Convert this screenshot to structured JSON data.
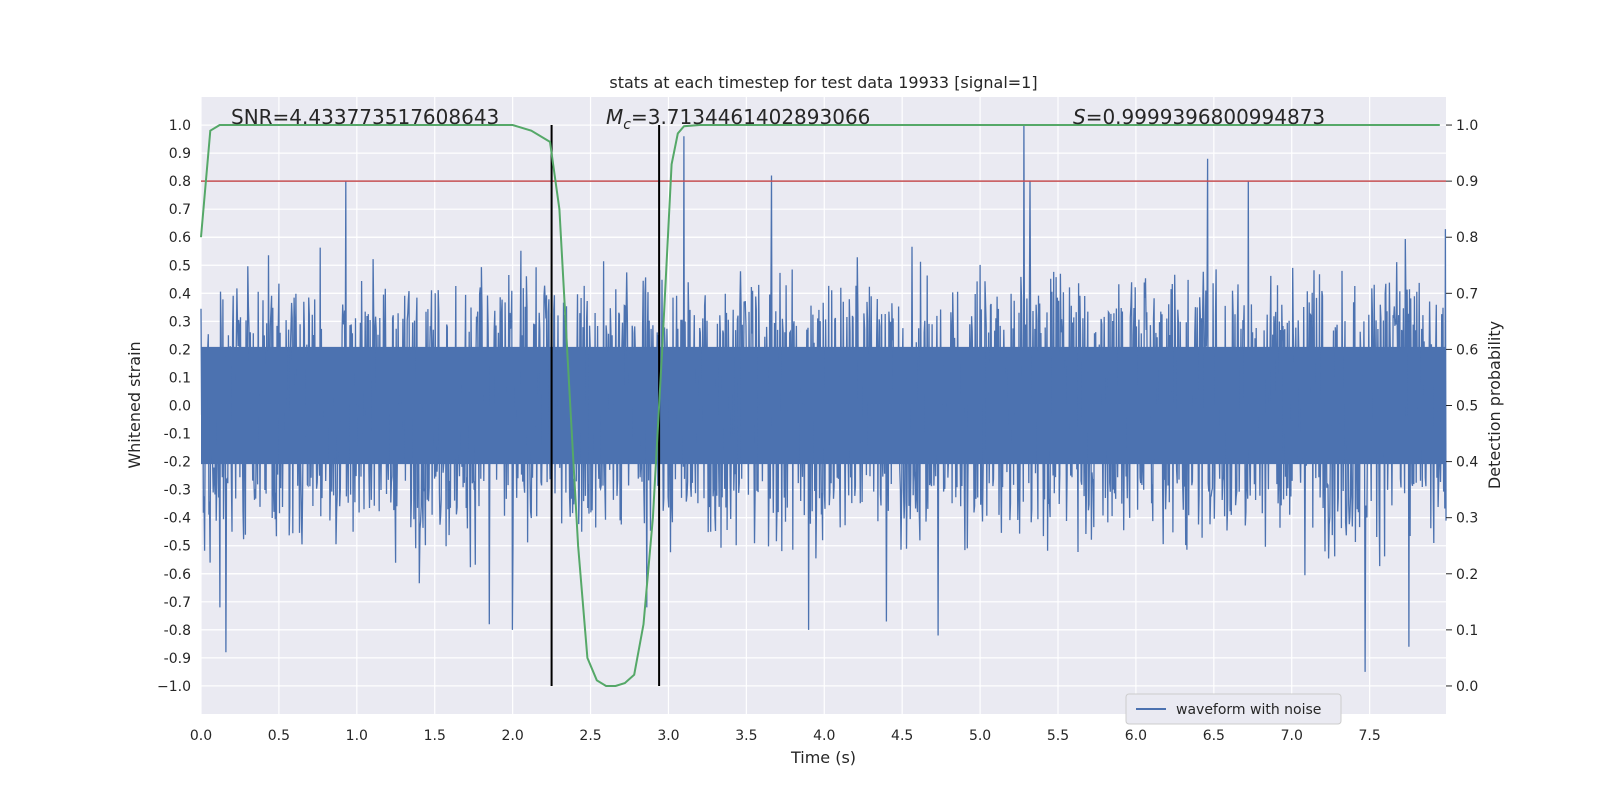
{
  "chart_data": {
    "type": "line",
    "title": "stats at each timestep for test data 19933 [signal=1]",
    "xlabel": "Time (s)",
    "ylabel_left": "Whitened strain",
    "ylabel_right": "Detection probability",
    "xlim": [
      0.0,
      7.99
    ],
    "ylim_left": [
      -1.1,
      1.1
    ],
    "ylim_right": [
      -0.05,
      1.05
    ],
    "x_ticks": [
      "0.0",
      "0.5",
      "1.0",
      "1.5",
      "2.0",
      "2.5",
      "3.0",
      "3.5",
      "4.0",
      "4.5",
      "5.0",
      "5.5",
      "6.0",
      "6.5",
      "7.0",
      "7.5"
    ],
    "y_ticks_left": [
      "1.0",
      "0.9",
      "0.8",
      "0.7",
      "0.6",
      "0.5",
      "0.4",
      "0.3",
      "0.2",
      "0.1",
      "0.0",
      "-0.1",
      "-0.2",
      "-0.3",
      "-0.4",
      "-0.5",
      "-0.6",
      "-0.7",
      "-0.8",
      "-0.9",
      "−1.0"
    ],
    "y_ticks_right": [
      "0.0",
      "0.1",
      "0.2",
      "0.3",
      "0.4",
      "0.5",
      "0.6",
      "0.7",
      "0.8",
      "0.9",
      "1.0"
    ],
    "annotations": {
      "snr": "SNR=4.433773517608643",
      "mc_symbol": "M",
      "mc_sub": "c",
      "mc_value": "=3.7134461402893066",
      "s_symbol": "S",
      "s_value": "=0.9999396800994873"
    },
    "legend": {
      "label": "waveform with noise",
      "location": "lower-right"
    },
    "threshold_line": {
      "y_left": 0.8,
      "color": "#c44e52"
    },
    "vertical_lines": [
      2.25,
      2.94
    ],
    "waveform": {
      "name": "waveform with noise",
      "color": "#4c72b0",
      "n_samples": 2048,
      "envelope_core": 0.38,
      "spikes": [
        {
          "x": 0.06,
          "y": -0.56
        },
        {
          "x": 0.12,
          "y": -0.72
        },
        {
          "x": 0.16,
          "y": -0.88
        },
        {
          "x": 0.93,
          "y": 0.8
        },
        {
          "x": 1.85,
          "y": -0.78
        },
        {
          "x": 2.0,
          "y": -0.8
        },
        {
          "x": 3.1,
          "y": 0.96
        },
        {
          "x": 3.66,
          "y": 0.82
        },
        {
          "x": 3.9,
          "y": -0.8
        },
        {
          "x": 4.4,
          "y": -0.77
        },
        {
          "x": 4.73,
          "y": -0.82
        },
        {
          "x": 5.28,
          "y": 1.0
        },
        {
          "x": 5.32,
          "y": 0.8
        },
        {
          "x": 6.46,
          "y": 0.88
        },
        {
          "x": 6.72,
          "y": 0.8
        },
        {
          "x": 7.47,
          "y": -0.95
        },
        {
          "x": 7.75,
          "y": -0.86
        },
        {
          "x": 2.86,
          "y": -0.72
        }
      ]
    },
    "detection_probability": {
      "name": "detection probability",
      "color": "#55a868",
      "x": [
        0.0,
        0.06,
        0.12,
        0.2,
        1.0,
        2.0,
        2.12,
        2.24,
        2.3,
        2.36,
        2.42,
        2.48,
        2.54,
        2.6,
        2.66,
        2.72,
        2.78,
        2.84,
        2.9,
        2.96,
        3.02,
        3.06,
        3.1,
        3.2,
        4.0,
        7.95
      ],
      "y": [
        0.8,
        0.99,
        1.0,
        1.0,
        1.0,
        1.0,
        0.99,
        0.97,
        0.85,
        0.55,
        0.25,
        0.05,
        0.01,
        0.0,
        0.0,
        0.005,
        0.02,
        0.11,
        0.3,
        0.6,
        0.93,
        0.985,
        0.998,
        1.0,
        1.0,
        1.0
      ]
    }
  }
}
